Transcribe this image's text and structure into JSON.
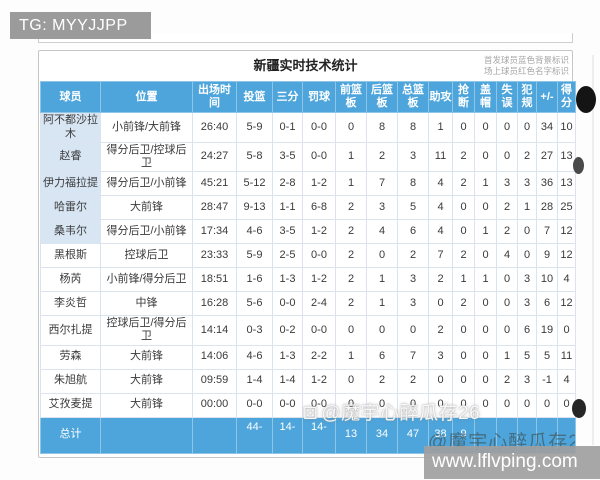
{
  "watermark_tg": "TG: MYYJJPP",
  "watermark_user": "@魔宇心醉瓜存26",
  "watermark_user_icon": "dice-logo-icon",
  "watermark_site": "www.lflvping.com",
  "panel": {
    "title": "新疆实时技术统计",
    "legend_line1": "首发球员蓝色背景标识",
    "legend_line2": "场上球员红色名字标识"
  },
  "colors": {
    "header_blue": "#4da5dc",
    "starter_row_bg": "#d8e6f4",
    "total_row_blue": "#4da5dc",
    "tg_box_gray": "#9b9b9b",
    "site_band_gray": "#a0a0a0"
  },
  "table": {
    "columns": [
      "球员",
      "位置",
      "出场时间",
      "投篮",
      "三分",
      "罚球",
      "前篮板",
      "后篮板",
      "总篮板",
      "助攻",
      "抢断",
      "盖帽",
      "失误",
      "犯规",
      "+/-",
      "得分"
    ],
    "rows": [
      {
        "starter": true,
        "cells": [
          "阿不都沙拉木",
          "小前锋/大前锋",
          "26:40",
          "5-9",
          "0-1",
          "0-0",
          "0",
          "8",
          "8",
          "1",
          "0",
          "0",
          "0",
          "0",
          "34",
          "10"
        ]
      },
      {
        "starter": true,
        "cells": [
          "赵睿",
          "得分后卫/控球后卫",
          "24:27",
          "5-8",
          "3-5",
          "0-0",
          "1",
          "2",
          "3",
          "11",
          "2",
          "0",
          "0",
          "2",
          "27",
          "13"
        ]
      },
      {
        "starter": true,
        "cells": [
          "伊力福拉提",
          "得分后卫/小前锋",
          "45:21",
          "5-12",
          "2-8",
          "1-2",
          "1",
          "7",
          "8",
          "4",
          "2",
          "1",
          "3",
          "3",
          "36",
          "13"
        ]
      },
      {
        "starter": true,
        "cells": [
          "哈雷尔",
          "大前锋",
          "28:47",
          "9-13",
          "1-1",
          "6-8",
          "2",
          "3",
          "5",
          "4",
          "0",
          "0",
          "2",
          "1",
          "28",
          "25"
        ]
      },
      {
        "starter": true,
        "cells": [
          "桑韦尔",
          "得分后卫/小前锋",
          "17:34",
          "4-6",
          "3-5",
          "1-2",
          "2",
          "4",
          "6",
          "4",
          "0",
          "1",
          "2",
          "0",
          "7",
          "12"
        ]
      },
      {
        "starter": false,
        "cells": [
          "黑根斯",
          "控球后卫",
          "23:33",
          "5-9",
          "2-5",
          "0-0",
          "2",
          "0",
          "2",
          "7",
          "2",
          "0",
          "4",
          "0",
          "9",
          "12"
        ]
      },
      {
        "starter": false,
        "cells": [
          "杨芮",
          "小前锋/得分后卫",
          "18:51",
          "1-6",
          "1-3",
          "1-2",
          "2",
          "1",
          "3",
          "2",
          "1",
          "1",
          "0",
          "3",
          "10",
          "4"
        ]
      },
      {
        "starter": false,
        "cells": [
          "李炎哲",
          "中锋",
          "16:28",
          "5-6",
          "0-0",
          "2-4",
          "2",
          "1",
          "3",
          "0",
          "2",
          "0",
          "0",
          "3",
          "6",
          "12"
        ]
      },
      {
        "starter": false,
        "cells": [
          "西尔扎提",
          "控球后卫/得分后卫",
          "14:14",
          "0-3",
          "0-2",
          "0-0",
          "0",
          "0",
          "0",
          "2",
          "0",
          "0",
          "0",
          "6",
          "19",
          "0"
        ]
      },
      {
        "starter": false,
        "cells": [
          "劳森",
          "大前锋",
          "14:06",
          "4-6",
          "1-3",
          "2-2",
          "1",
          "6",
          "7",
          "3",
          "0",
          "0",
          "1",
          "5",
          "5",
          "11"
        ]
      },
      {
        "starter": false,
        "cells": [
          "朱旭航",
          "大前锋",
          "09:59",
          "1-4",
          "1-4",
          "1-2",
          "0",
          "2",
          "2",
          "0",
          "0",
          "0",
          "2",
          "3",
          "-1",
          "4"
        ]
      },
      {
        "starter": false,
        "cells": [
          "艾孜麦提",
          "大前锋",
          "00:00",
          "0-0",
          "0-0",
          "0-0",
          "0",
          "0",
          "0",
          "0",
          "0",
          "0",
          "0",
          "0",
          "0",
          "0"
        ]
      }
    ],
    "total": {
      "cells": [
        "总计",
        "",
        "",
        "44-",
        "14-",
        "14-",
        "13",
        "34",
        "47",
        "38",
        "9",
        "",
        "",
        "",
        "",
        ""
      ]
    }
  }
}
